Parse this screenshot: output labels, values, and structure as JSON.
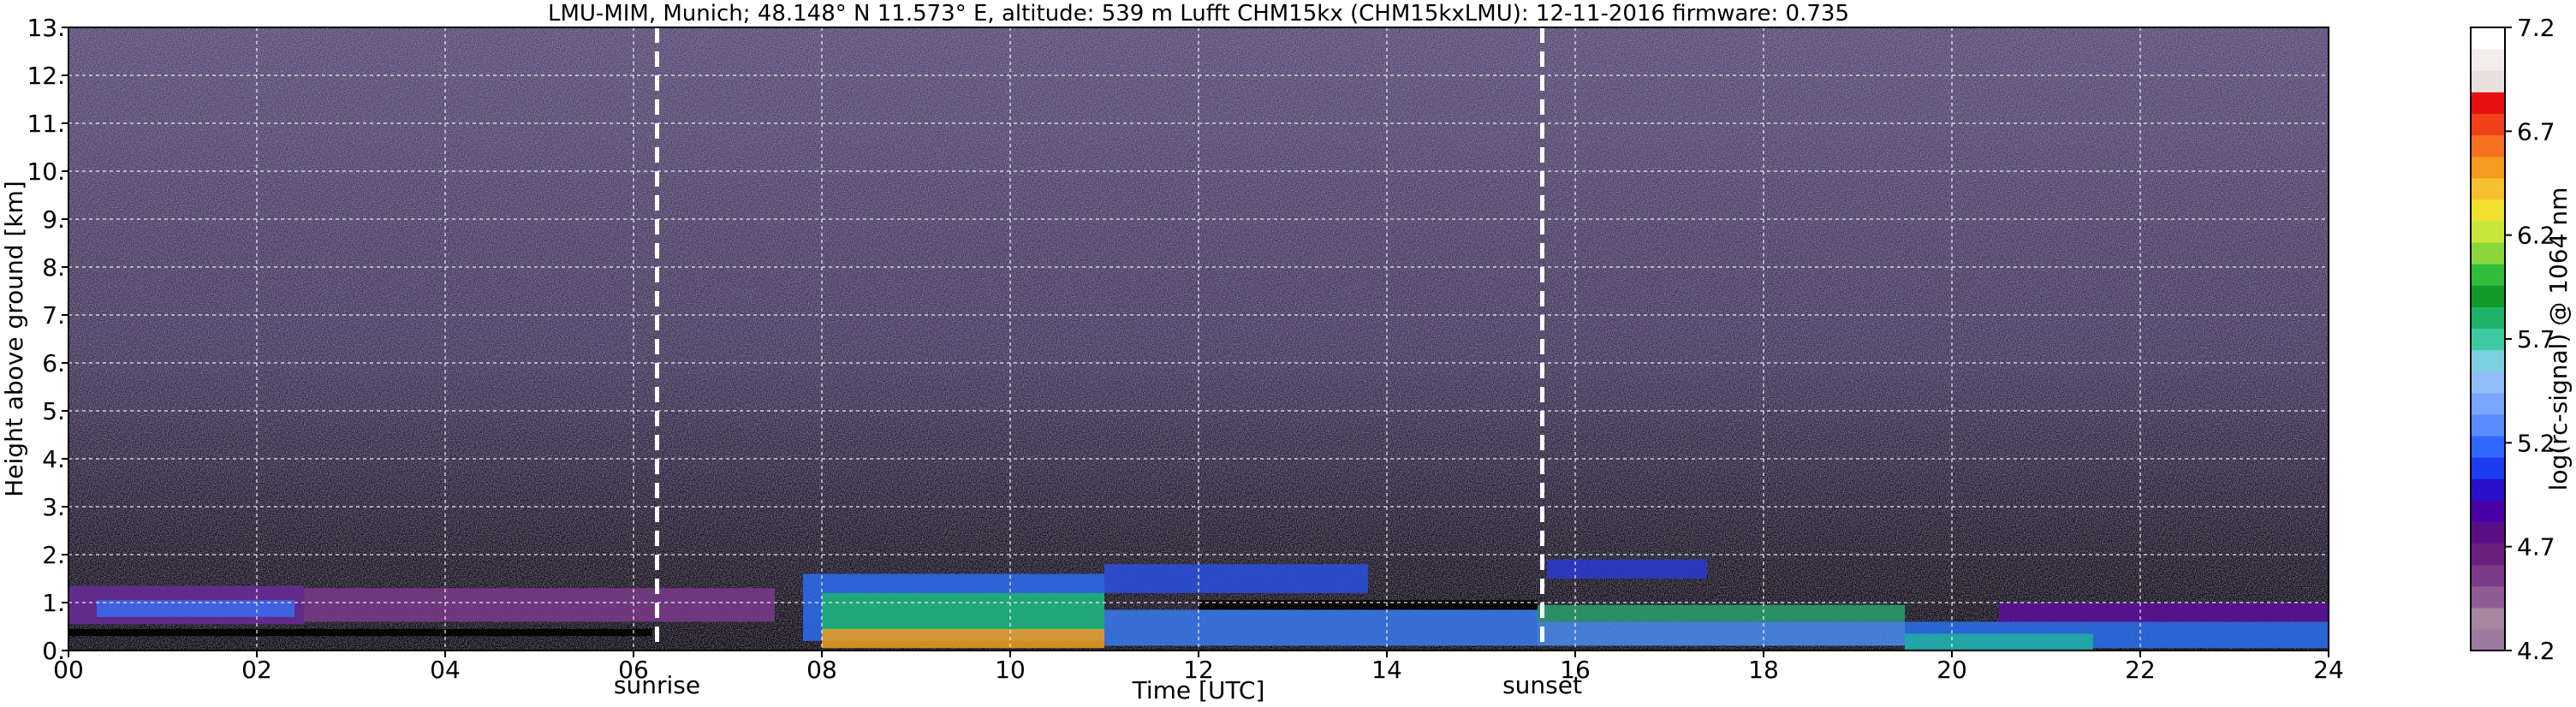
{
  "chart_data": {
    "type": "heatmap",
    "title": "LMU-MIM, Munich; 48.148° N 11.573° E, altitude: 539 m    Lufft CHM15kx (CHM15kxLMU): 12-11-2016    firmware: 0.735",
    "xlabel": "Time [UTC]",
    "ylabel": "Height above ground [km]",
    "xlim": [
      0,
      24
    ],
    "ylim": [
      0,
      13
    ],
    "x_ticks": [
      "00",
      "02",
      "04",
      "06",
      "08",
      "10",
      "12",
      "14",
      "16",
      "18",
      "20",
      "22",
      "24"
    ],
    "y_ticks": [
      "0.",
      "1.",
      "2.",
      "3.",
      "4.",
      "5.",
      "6.",
      "7.",
      "8.",
      "9.",
      "10.",
      "11.",
      "12.",
      "13."
    ],
    "grid": true,
    "colorbar": {
      "label": "log(rc-signal) @ 1064 nm",
      "range": [
        4.2,
        7.2
      ],
      "ticks": [
        "4.2",
        "4.7",
        "5.2",
        "5.7",
        "6.2",
        "6.7",
        "7.2"
      ],
      "colors": [
        "#9c7a9e",
        "#a7869f",
        "#8e5c93",
        "#7a3a88",
        "#6b1f7f",
        "#5a0e86",
        "#4a00a8",
        "#2a10cc",
        "#1c3cf0",
        "#3068ff",
        "#5a8cff",
        "#7aa6ff",
        "#93bdf7",
        "#7dd0e0",
        "#3ec9a0",
        "#1fb36a",
        "#0f9a2a",
        "#2fbd3a",
        "#8ad63a",
        "#c8e63a",
        "#f0e030",
        "#f7c030",
        "#f79a20",
        "#f77020",
        "#f04018",
        "#e81010",
        "#e8e0e0",
        "#f2ecec",
        "#ffffff"
      ]
    },
    "annotations": [
      {
        "text": "sunrise",
        "x": 6.25
      },
      {
        "text": "sunset",
        "x": 15.65
      }
    ],
    "layers": [
      {
        "x": [
          0,
          6.2
        ],
        "y": [
          0.3,
          0.45
        ],
        "value": 4.3,
        "color": "#000000"
      },
      {
        "x": [
          0,
          2.5
        ],
        "y": [
          0.55,
          1.35
        ],
        "value": 5.0,
        "color": "#6a2a9a"
      },
      {
        "x": [
          0.3,
          2.4
        ],
        "y": [
          0.7,
          1.05
        ],
        "value": 5.4,
        "color": "#3a6cf0"
      },
      {
        "x": [
          2.5,
          7.5
        ],
        "y": [
          0.6,
          1.3
        ],
        "value": 4.8,
        "color": "#7a3a8a"
      },
      {
        "x": [
          7.8,
          11.0
        ],
        "y": [
          0.2,
          1.6
        ],
        "value": 5.5,
        "color": "#2a6cf0"
      },
      {
        "x": [
          8.0,
          11.0
        ],
        "y": [
          0.4,
          1.2
        ],
        "value": 5.9,
        "color": "#1fb36a"
      },
      {
        "x": [
          8.0,
          11.0
        ],
        "y": [
          0.05,
          0.45
        ],
        "value": 6.5,
        "color": "#f0a020"
      },
      {
        "x": [
          11.0,
          15.6
        ],
        "y": [
          0.1,
          0.85
        ],
        "value": 5.5,
        "color": "#3a7af0"
      },
      {
        "x": [
          12.0,
          15.6
        ],
        "y": [
          0.85,
          1.05
        ],
        "value": 4.3,
        "color": "#000000"
      },
      {
        "x": [
          11.0,
          13.8
        ],
        "y": [
          1.2,
          1.8
        ],
        "value": 5.3,
        "color": "#2a50e0"
      },
      {
        "x": [
          15.6,
          19.5
        ],
        "y": [
          0.1,
          0.6
        ],
        "value": 5.6,
        "color": "#4a8cf0"
      },
      {
        "x": [
          15.6,
          19.5
        ],
        "y": [
          0.6,
          0.95
        ],
        "value": 5.8,
        "color": "#2aa070"
      },
      {
        "x": [
          15.7,
          17.4
        ],
        "y": [
          1.5,
          1.9
        ],
        "value": 5.3,
        "color": "#2a3ad0"
      },
      {
        "x": [
          19.5,
          24
        ],
        "y": [
          0.05,
          0.6
        ],
        "value": 5.5,
        "color": "#2a70f0"
      },
      {
        "x": [
          19.5,
          21.5
        ],
        "y": [
          0.0,
          0.35
        ],
        "value": 5.7,
        "color": "#20b0a0"
      },
      {
        "x": [
          20.5,
          24
        ],
        "y": [
          0.6,
          1.0
        ],
        "value": 5.0,
        "color": "#5a0e9a"
      }
    ]
  }
}
